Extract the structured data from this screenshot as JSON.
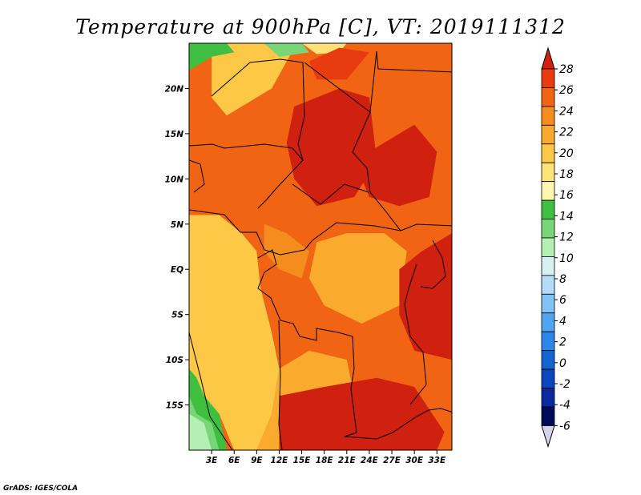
{
  "credit": "GrADS: IGES/COLA",
  "chart_data": {
    "type": "heatmap",
    "title": "Temperature at 900hPa [C], VT: 2019111312",
    "xlabel": "",
    "ylabel": "",
    "xlim": [
      0,
      35
    ],
    "ylim": [
      -20,
      25
    ],
    "x_ticks": [
      {
        "value": 3,
        "label": "3E"
      },
      {
        "value": 6,
        "label": "6E"
      },
      {
        "value": 9,
        "label": "9E"
      },
      {
        "value": 12,
        "label": "12E"
      },
      {
        "value": 15,
        "label": "15E"
      },
      {
        "value": 18,
        "label": "18E"
      },
      {
        "value": 21,
        "label": "21E"
      },
      {
        "value": 24,
        "label": "24E"
      },
      {
        "value": 27,
        "label": "27E"
      },
      {
        "value": 30,
        "label": "30E"
      },
      {
        "value": 33,
        "label": "33E"
      }
    ],
    "y_ticks": [
      {
        "value": 20,
        "label": "20N"
      },
      {
        "value": 15,
        "label": "15N"
      },
      {
        "value": 10,
        "label": "10N"
      },
      {
        "value": 5,
        "label": "5N"
      },
      {
        "value": 0,
        "label": "EQ"
      },
      {
        "value": -5,
        "label": "5S"
      },
      {
        "value": -10,
        "label": "10S"
      },
      {
        "value": -15,
        "label": "15S"
      }
    ],
    "colorbar": {
      "labels": [
        "28",
        "26",
        "24",
        "22",
        "20",
        "18",
        "16",
        "14",
        "12",
        "10",
        "8",
        "6",
        "4",
        "2",
        "0",
        "-2",
        "-4",
        "-6"
      ],
      "colors": [
        "#d02010",
        "#e83c10",
        "#f06414",
        "#f58c1e",
        "#faaa2d",
        "#fcc846",
        "#fde27a",
        "#fff7b0",
        "#3fbf3f",
        "#78d678",
        "#b4f0b4",
        "#d7f0f0",
        "#b4dcf8",
        "#82c3f5",
        "#50a5f0",
        "#2d87eb",
        "#1464d2",
        "#0a46be",
        "#0a28a0",
        "#000a5a",
        "#d4d4f0"
      ]
    },
    "regions": [
      {
        "label": "",
        "color": "#fcc846",
        "points": [
          [
            0,
            25
          ],
          [
            3,
            25
          ],
          [
            3,
            19
          ],
          [
            5,
            17
          ],
          [
            7,
            18
          ],
          [
            11,
            20
          ],
          [
            14,
            24.5
          ],
          [
            10,
            25
          ]
        ]
      },
      {
        "label": "",
        "color": "#3fbf3f",
        "points": [
          [
            0,
            25
          ],
          [
            5,
            25
          ],
          [
            6,
            24
          ],
          [
            3,
            23.5
          ],
          [
            1,
            22.5
          ],
          [
            0,
            22
          ]
        ]
      },
      {
        "label": "",
        "color": "#78d678",
        "points": [
          [
            10,
            25
          ],
          [
            15,
            25
          ],
          [
            16,
            24
          ],
          [
            12,
            23.5
          ]
        ]
      },
      {
        "label": "",
        "color": "#fde27a",
        "points": [
          [
            15,
            25
          ],
          [
            21,
            25
          ],
          [
            20,
            24
          ],
          [
            17,
            23.8
          ]
        ]
      },
      {
        "label": "",
        "color": "#fcc846",
        "points": [
          [
            0,
            6
          ],
          [
            4,
            6
          ],
          [
            7,
            4
          ],
          [
            9,
            2
          ],
          [
            9.5,
            -2
          ],
          [
            11,
            -7
          ],
          [
            12,
            -11
          ],
          [
            11,
            -16
          ],
          [
            9,
            -20
          ],
          [
            6,
            -20
          ],
          [
            4,
            -16
          ],
          [
            2,
            -14
          ],
          [
            0,
            -11
          ]
        ]
      },
      {
        "label": "",
        "color": "#faaa2d",
        "points": [
          [
            12,
            -11
          ],
          [
            16,
            -9
          ],
          [
            21,
            -10
          ],
          [
            22,
            -14
          ],
          [
            18,
            -16
          ],
          [
            15,
            -18
          ],
          [
            12,
            -20
          ],
          [
            9,
            -20
          ],
          [
            11,
            -16
          ]
        ]
      },
      {
        "label": "",
        "color": "#faaa2d",
        "points": [
          [
            17,
            3
          ],
          [
            21,
            4
          ],
          [
            26,
            4
          ],
          [
            29,
            2
          ],
          [
            28,
            -4
          ],
          [
            23,
            -6
          ],
          [
            18,
            -4
          ],
          [
            16,
            -1
          ]
        ]
      },
      {
        "label": "",
        "color": "#f58c1e",
        "points": [
          [
            10,
            5
          ],
          [
            13,
            4
          ],
          [
            16,
            2
          ],
          [
            15,
            -1
          ],
          [
            12,
            0
          ],
          [
            10,
            2
          ]
        ]
      },
      {
        "label": "",
        "color": "#d02010",
        "points": [
          [
            14,
            18
          ],
          [
            20,
            20
          ],
          [
            24,
            19
          ],
          [
            25,
            12
          ],
          [
            22,
            8
          ],
          [
            17,
            7
          ],
          [
            14,
            10
          ],
          [
            13,
            14
          ]
        ]
      },
      {
        "label": "",
        "color": "#d02010",
        "points": [
          [
            22,
            12
          ],
          [
            30,
            16
          ],
          [
            33,
            13
          ],
          [
            32,
            8
          ],
          [
            28,
            7
          ],
          [
            24,
            8
          ]
        ]
      },
      {
        "label": "",
        "color": "#d02010",
        "points": [
          [
            12,
            -14
          ],
          [
            18,
            -13
          ],
          [
            25,
            -12
          ],
          [
            30,
            -13
          ],
          [
            34,
            -18
          ],
          [
            33,
            -20
          ],
          [
            12,
            -20
          ]
        ]
      },
      {
        "label": "",
        "color": "#d02010",
        "points": [
          [
            28,
            0
          ],
          [
            31,
            2
          ],
          [
            35,
            4
          ],
          [
            35,
            -10
          ],
          [
            30,
            -9
          ],
          [
            28,
            -5
          ]
        ]
      },
      {
        "label": "",
        "color": "#e83c10",
        "points": [
          [
            16,
            23
          ],
          [
            20,
            24.5
          ],
          [
            24,
            24
          ],
          [
            21,
            21
          ],
          [
            17,
            21
          ]
        ]
      },
      {
        "label": "",
        "color": "#3fbf3f",
        "points": [
          [
            0,
            -11
          ],
          [
            1,
            -12
          ],
          [
            2,
            -14
          ],
          [
            4,
            -16
          ],
          [
            5,
            -20
          ],
          [
            0,
            -20
          ]
        ]
      },
      {
        "label": "",
        "color": "#78d678",
        "points": [
          [
            0,
            -14
          ],
          [
            1,
            -16
          ],
          [
            3,
            -17
          ],
          [
            4,
            -20
          ],
          [
            0,
            -20
          ]
        ]
      },
      {
        "label": "",
        "color": "#b4f0b4",
        "points": [
          [
            0,
            -16
          ],
          [
            2,
            -17
          ],
          [
            3,
            -20
          ],
          [
            0,
            -20
          ]
        ]
      }
    ]
  }
}
